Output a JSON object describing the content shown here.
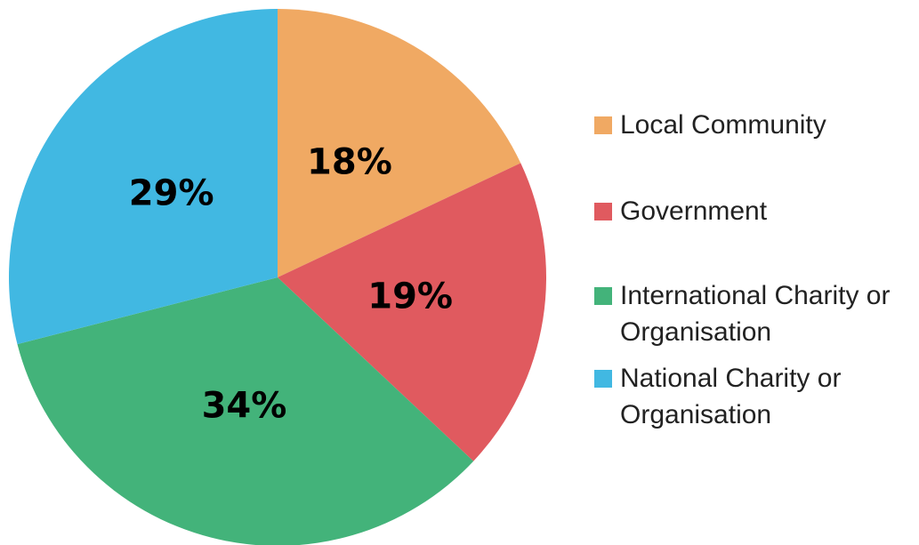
{
  "chart_data": {
    "type": "pie",
    "categories": [
      "Local Community",
      "Government",
      "International Charity or Organisation",
      "National Charity or Organisation"
    ],
    "values": [
      18,
      19,
      34,
      29
    ],
    "value_labels": [
      "18%",
      "19%",
      "34%",
      "29%"
    ],
    "colors": [
      "#F0A963",
      "#E05A5F",
      "#43B37A",
      "#41B8E2"
    ],
    "legend": "right"
  }
}
